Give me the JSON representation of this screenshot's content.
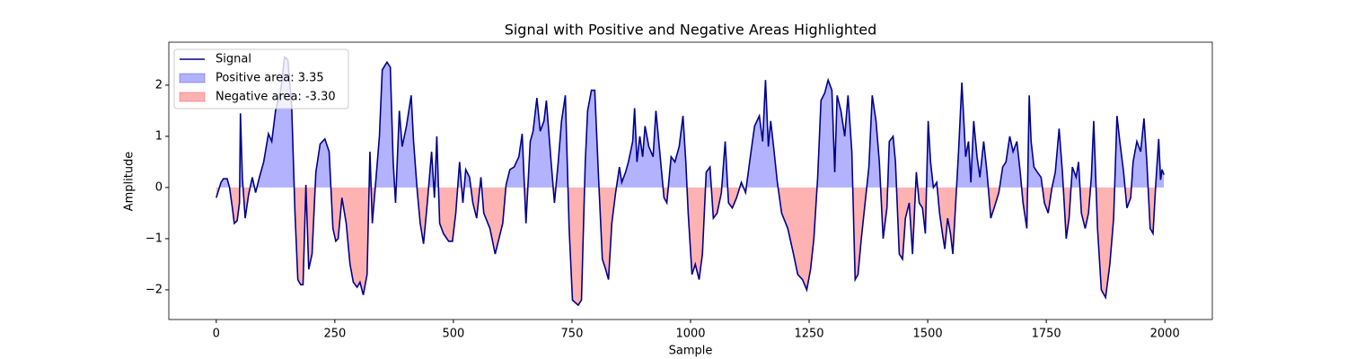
{
  "chart_data": {
    "type": "line",
    "title": "Signal with Positive and Negative Areas Highlighted",
    "x_label": "Sample",
    "y_label": "Amplitude",
    "xlim": [
      -100,
      2100
    ],
    "ylim": [
      -2.58,
      2.84
    ],
    "xticks": [
      0,
      250,
      500,
      750,
      1000,
      1250,
      1500,
      1750,
      2000
    ],
    "yticks": [
      {
        "value": -2,
        "label": "−2"
      },
      {
        "value": -1,
        "label": "−1"
      },
      0,
      1,
      2
    ],
    "legend": "upper left",
    "x": [
      0,
      10,
      15,
      23,
      28,
      34,
      38,
      44,
      49,
      51,
      55,
      61,
      68,
      76,
      83,
      91,
      100,
      110,
      117,
      125,
      136,
      144,
      151,
      159,
      166,
      172,
      178,
      183,
      189,
      195,
      202,
      210,
      219,
      229,
      238,
      246,
      252,
      257,
      265,
      274,
      282,
      289,
      297,
      303,
      310,
      318,
      324,
      329,
      337,
      344,
      350,
      360,
      367,
      373,
      378,
      386,
      392,
      401,
      411,
      416,
      424,
      430,
      437,
      445,
      454,
      460,
      465,
      471,
      479,
      490,
      498,
      505,
      513,
      520,
      526,
      534,
      541,
      549,
      558,
      564,
      577,
      588,
      596,
      604,
      611,
      619,
      628,
      638,
      645,
      653,
      662,
      668,
      676,
      683,
      691,
      696,
      706,
      713,
      721,
      728,
      736,
      744,
      751,
      763,
      770,
      778,
      783,
      791,
      798,
      806,
      814,
      821,
      827,
      834,
      842,
      850,
      855,
      863,
      869,
      878,
      882,
      887,
      893,
      899,
      904,
      912,
      921,
      927,
      937,
      944,
      950,
      959,
      967,
      976,
      984,
      990,
      995,
      1003,
      1010,
      1018,
      1025,
      1033,
      1041,
      1048,
      1056,
      1065,
      1073,
      1080,
      1088,
      1097,
      1107,
      1116,
      1126,
      1135,
      1145,
      1152,
      1158,
      1164,
      1169,
      1175,
      1183,
      1192,
      1205,
      1217,
      1226,
      1236,
      1245,
      1253,
      1260,
      1268,
      1275,
      1283,
      1290,
      1298,
      1304,
      1309,
      1317,
      1325,
      1332,
      1340,
      1347,
      1353,
      1360,
      1368,
      1376,
      1383,
      1391,
      1398,
      1406,
      1414,
      1419,
      1427,
      1432,
      1440,
      1447,
      1453,
      1461,
      1468,
      1476,
      1482,
      1489,
      1495,
      1501,
      1506,
      1512,
      1519,
      1525,
      1531,
      1536,
      1542,
      1548,
      1553,
      1559,
      1565,
      1572,
      1580,
      1586,
      1591,
      1597,
      1604,
      1610,
      1618,
      1625,
      1633,
      1640,
      1650,
      1658,
      1665,
      1673,
      1680,
      1688,
      1695,
      1701,
      1709,
      1714,
      1718,
      1724,
      1731,
      1739,
      1746,
      1754,
      1762,
      1769,
      1777,
      1784,
      1792,
      1798,
      1805,
      1813,
      1818,
      1824,
      1832,
      1839,
      1845,
      1850,
      1858,
      1866,
      1875,
      1884,
      1892,
      1899,
      1905,
      1913,
      1920,
      1928,
      1933,
      1941,
      1949,
      1956,
      1962,
      1969,
      1975,
      1981,
      1987,
      1991,
      1994,
      1998
    ],
    "series": [
      {
        "name": "Signal",
        "color": "#00008b",
        "values": [
          -0.2,
          0.1,
          0.17,
          0.17,
          0,
          -0.4,
          -0.7,
          -0.65,
          -0.3,
          1.45,
          0.2,
          -0.6,
          -0.15,
          0.2,
          -0.1,
          0.2,
          0.5,
          1.05,
          0.9,
          1.5,
          1.9,
          2.55,
          2.5,
          1.6,
          -0.5,
          -1.8,
          -1.9,
          -1.9,
          0.05,
          -1.6,
          -1.3,
          0.3,
          0.85,
          0.95,
          0.7,
          -0.8,
          -1.05,
          -1.0,
          -0.2,
          -0.7,
          -1.5,
          -1.85,
          -1.95,
          -1.85,
          -2.1,
          -1.7,
          0.7,
          -0.7,
          0.2,
          1.0,
          2.3,
          2.45,
          2.35,
          0.5,
          -0.3,
          1.5,
          0.8,
          1.2,
          1.8,
          0.9,
          -0.1,
          -0.7,
          -1.1,
          -0.3,
          0.7,
          -0.2,
          1.0,
          -0.7,
          -0.9,
          -1.05,
          -1.05,
          -0.5,
          0.5,
          -0.3,
          0.35,
          0.2,
          -0.3,
          -0.6,
          0.2,
          -0.5,
          -0.8,
          -1.3,
          -1.0,
          -0.7,
          0.05,
          0.35,
          0.4,
          0.6,
          1.05,
          -0.7,
          0.9,
          1.1,
          1.75,
          1.1,
          1.3,
          1.7,
          0.5,
          -0.3,
          0.5,
          1.3,
          1.8,
          -0.8,
          -2.2,
          -2.3,
          -2.2,
          0.5,
          1.5,
          1.9,
          1.9,
          0.2,
          -1.4,
          -1.6,
          -1.8,
          -0.7,
          -0.1,
          0.4,
          0.1,
          0.3,
          0.5,
          0.9,
          1.55,
          0.5,
          1.0,
          0.6,
          1.2,
          0.8,
          0.6,
          1.5,
          0.5,
          -0.2,
          -0.3,
          0.6,
          0.5,
          0.8,
          1.4,
          0.5,
          -0.5,
          -1.7,
          -1.5,
          -1.8,
          -1.3,
          0.3,
          0.4,
          -0.6,
          -0.5,
          -0.1,
          0.9,
          -0.3,
          -0.4,
          -0.2,
          0.1,
          -0.1,
          0.6,
          1.2,
          1.4,
          0.9,
          2.1,
          0.8,
          1.3,
          0.8,
          0.1,
          -0.5,
          -0.8,
          -1.3,
          -1.7,
          -1.8,
          -2.0,
          -1.6,
          -1.0,
          0.2,
          1.7,
          1.85,
          2.1,
          1.9,
          0.3,
          1.8,
          1.5,
          1.0,
          1.8,
          0.7,
          -1.8,
          -1.7,
          -1.0,
          -0.3,
          0.4,
          1.8,
          1.3,
          0.5,
          -1.0,
          -0.4,
          0.9,
          1.0,
          0.5,
          -1.3,
          -1.4,
          -0.6,
          -0.3,
          -1.3,
          0.3,
          -0.3,
          -0.4,
          -0.9,
          1.3,
          0.5,
          0,
          0.1,
          -0.5,
          -0.9,
          -1.2,
          -0.6,
          -0.9,
          -1.3,
          -0.3,
          0.7,
          2.05,
          0.6,
          0.9,
          0.1,
          1.3,
          0.6,
          0.2,
          0.9,
          0.3,
          -0.6,
          -0.4,
          -0.1,
          0.4,
          0.5,
          1.0,
          0.7,
          0.9,
          0.3,
          -0.3,
          -0.8,
          1.8,
          0.9,
          0.4,
          0.3,
          0.2,
          -0.3,
          -0.5,
          0,
          0.3,
          1.15,
          0.3,
          -1.0,
          -0.6,
          0.4,
          0.2,
          0.5,
          -0.5,
          -0.8,
          -0.5,
          0.2,
          1.3,
          -0.8,
          -2.0,
          -2.15,
          -1.5,
          -0.6,
          1.4,
          0.9,
          0.3,
          -0.4,
          -0.2,
          0.5,
          0.9,
          0.7,
          1.35,
          0.5,
          -0.8,
          -0.9,
          0.1,
          0.95,
          0.15,
          0.35,
          0.25
        ]
      }
    ],
    "fills": [
      {
        "name": "Positive area: 3.35",
        "color": "#0000ff",
        "side": "positive"
      },
      {
        "name": "Negative area: -3.30",
        "color": "#ff0000",
        "side": "negative"
      }
    ]
  }
}
